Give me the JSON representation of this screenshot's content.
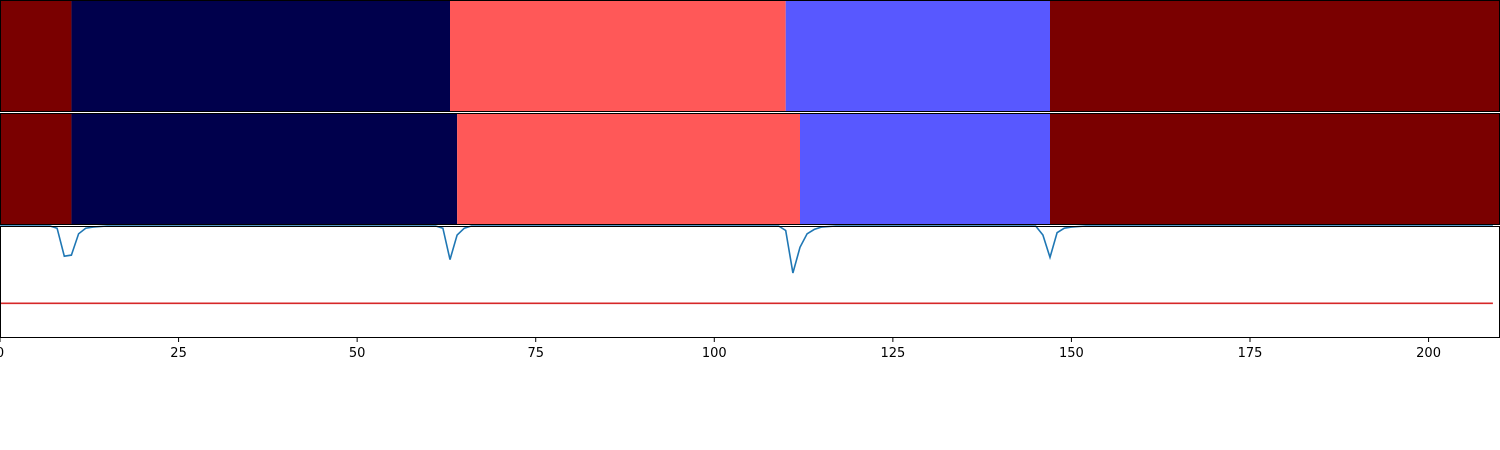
{
  "chart_data": {
    "type": "heatmap",
    "xlim": [
      0,
      210
    ],
    "xticks": [
      0,
      25,
      50,
      75,
      100,
      125,
      150,
      175,
      200
    ],
    "xtick_labels": [
      "0",
      "25",
      "50",
      "75",
      "100",
      "125",
      "150",
      "175",
      "200"
    ],
    "grid": false,
    "segment_rows": [
      {
        "segments": [
          {
            "start": 0,
            "end": 10,
            "color": "#7a0000"
          },
          {
            "start": 10,
            "end": 63,
            "color": "#00004c"
          },
          {
            "start": 63,
            "end": 110,
            "color": "#ff5858"
          },
          {
            "start": 110,
            "end": 147,
            "color": "#5858ff"
          },
          {
            "start": 147,
            "end": 210,
            "color": "#7a0000"
          }
        ]
      },
      {
        "segments": [
          {
            "start": 0,
            "end": 10,
            "color": "#7a0000"
          },
          {
            "start": 10,
            "end": 64,
            "color": "#00004c"
          },
          {
            "start": 64,
            "end": 112,
            "color": "#ff5858"
          },
          {
            "start": 112,
            "end": 147,
            "color": "#5858ff"
          },
          {
            "start": 147,
            "end": 210,
            "color": "#7a0000"
          }
        ]
      }
    ],
    "line_panel": {
      "ylim": [
        0,
        1
      ],
      "series": [
        {
          "color": "#1f77b4",
          "points": [
            [
              0,
              1.0
            ],
            [
              7,
              1.0
            ],
            [
              8,
              0.98
            ],
            [
              9,
              0.73
            ],
            [
              10,
              0.74
            ],
            [
              11,
              0.93
            ],
            [
              12,
              0.98
            ],
            [
              13,
              0.99
            ],
            [
              15,
              1.0
            ],
            [
              61,
              1.0
            ],
            [
              62,
              0.98
            ],
            [
              63,
              0.7
            ],
            [
              64,
              0.92
            ],
            [
              65,
              0.98
            ],
            [
              66,
              1.0
            ],
            [
              109,
              1.0
            ],
            [
              110,
              0.96
            ],
            [
              111,
              0.58
            ],
            [
              112,
              0.81
            ],
            [
              113,
              0.93
            ],
            [
              114,
              0.97
            ],
            [
              115,
              0.99
            ],
            [
              117,
              1.0
            ],
            [
              145,
              1.0
            ],
            [
              146,
              0.92
            ],
            [
              147,
              0.72
            ],
            [
              148,
              0.94
            ],
            [
              149,
              0.98
            ],
            [
              150,
              0.99
            ],
            [
              152,
              1.0
            ],
            [
              209,
              1.0
            ]
          ]
        },
        {
          "color": "#d62728",
          "points": [
            [
              0,
              0.31
            ],
            [
              209,
              0.31
            ]
          ]
        }
      ]
    }
  }
}
